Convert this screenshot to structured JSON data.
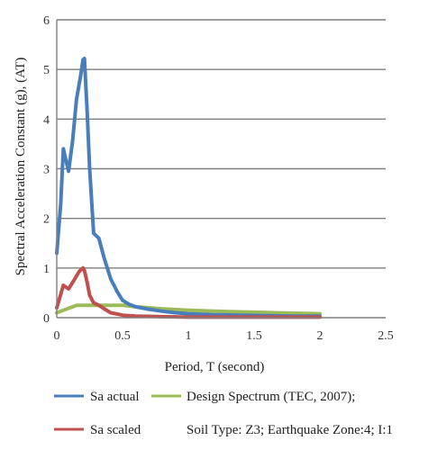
{
  "chart_data": {
    "type": "line",
    "title": "",
    "xlabel": "Period, T (second)",
    "ylabel": "Spectral Acceleration Constant (g), (AT)",
    "xlim": [
      0,
      2.5
    ],
    "ylim": [
      0,
      6
    ],
    "xticks": [
      0,
      0.5,
      1,
      1.5,
      2,
      2.5
    ],
    "xtick_labels": [
      "0",
      "0.5",
      "1",
      "1.5",
      "2",
      "2.5"
    ],
    "yticks": [
      0,
      1,
      2,
      3,
      4,
      5,
      6
    ],
    "ytick_labels": [
      "0",
      "1",
      "2",
      "3",
      "4",
      "5",
      "6"
    ],
    "grid": "horizontal",
    "legend_position": "bottom",
    "series": [
      {
        "name": "Sa actual",
        "color": "#4a7ebb",
        "x": [
          0.0,
          0.03,
          0.05,
          0.09,
          0.12,
          0.15,
          0.18,
          0.2,
          0.21,
          0.23,
          0.25,
          0.28,
          0.32,
          0.36,
          0.41,
          0.46,
          0.5,
          0.55,
          0.6,
          0.7,
          0.8,
          0.9,
          1.0,
          1.2,
          1.4,
          1.6,
          1.8,
          2.0
        ],
        "y": [
          1.3,
          2.3,
          3.4,
          2.95,
          3.55,
          4.4,
          4.85,
          5.2,
          5.22,
          4.2,
          3.0,
          1.7,
          1.6,
          1.2,
          0.78,
          0.52,
          0.35,
          0.27,
          0.22,
          0.17,
          0.13,
          0.1,
          0.08,
          0.06,
          0.05,
          0.04,
          0.03,
          0.03
        ]
      },
      {
        "name": "Sa scaled",
        "color": "#c0504d",
        "x": [
          0.0,
          0.05,
          0.09,
          0.13,
          0.17,
          0.2,
          0.21,
          0.23,
          0.25,
          0.28,
          0.32,
          0.36,
          0.41,
          0.5,
          0.6,
          0.8,
          1.0,
          1.5,
          2.0
        ],
        "y": [
          0.2,
          0.65,
          0.58,
          0.75,
          0.93,
          1.0,
          0.95,
          0.72,
          0.45,
          0.3,
          0.25,
          0.18,
          0.1,
          0.05,
          0.03,
          0.02,
          0.01,
          0.01,
          0.01
        ]
      },
      {
        "name": "Design Spectrum (TEC, 2007);",
        "color": "#9bbb59",
        "x": [
          0.0,
          0.1,
          0.15,
          0.2,
          0.5,
          0.6,
          0.8,
          1.0,
          1.2,
          1.5,
          1.8,
          2.0
        ],
        "y": [
          0.1,
          0.2,
          0.25,
          0.25,
          0.25,
          0.22,
          0.18,
          0.15,
          0.13,
          0.11,
          0.09,
          0.08
        ]
      }
    ],
    "legend_note": "Soil Type: Z3; Earthquake Zone:4; I:1"
  }
}
